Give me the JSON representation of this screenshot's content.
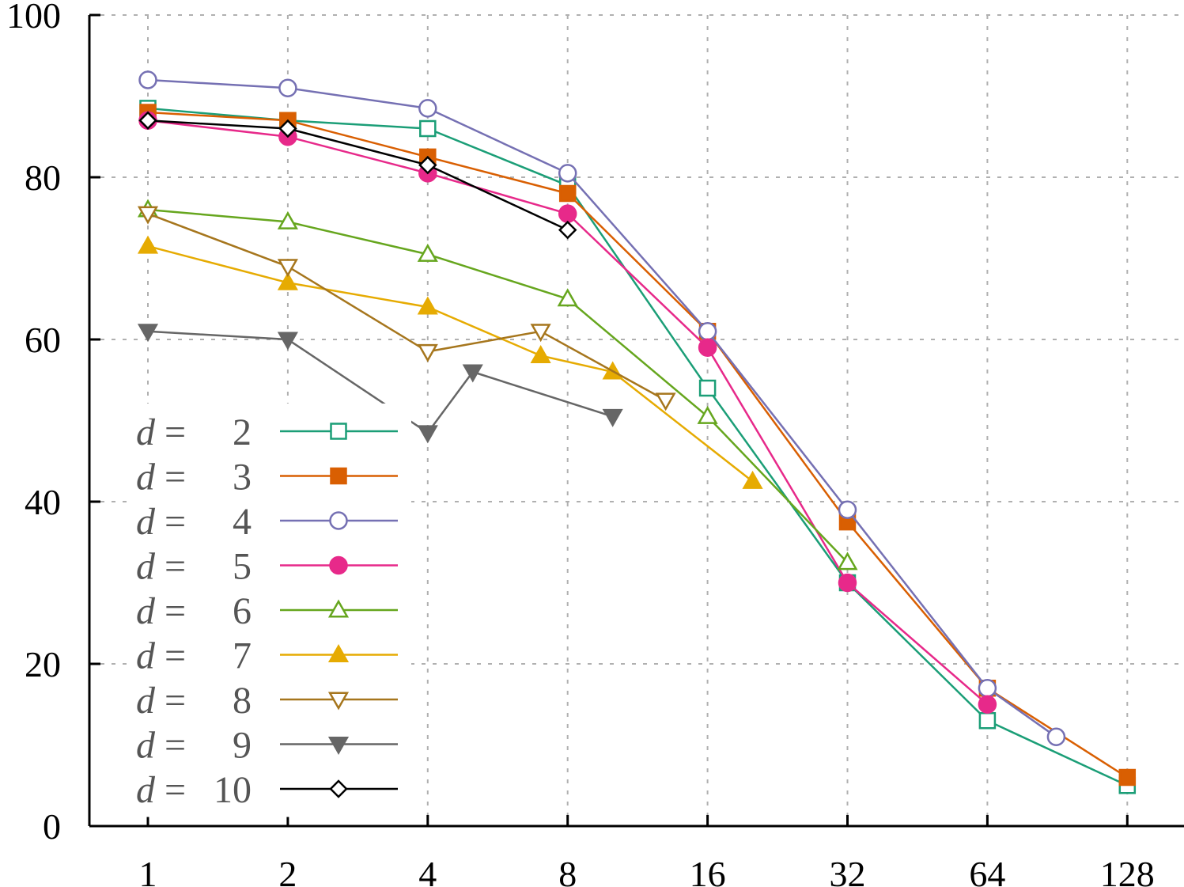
{
  "chart_data": {
    "type": "line",
    "title": "",
    "xlabel": "",
    "ylabel": "",
    "x_scale": "log2",
    "x_ticks": [
      1,
      2,
      4,
      8,
      16,
      32,
      64,
      128
    ],
    "x_tick_labels": [
      "1",
      "2",
      "4",
      "8",
      "16",
      "32",
      "64",
      "128"
    ],
    "y_ticks": [
      0,
      20,
      40,
      60,
      80,
      100
    ],
    "y_tick_labels": [
      "0",
      "20",
      "40",
      "60",
      "80",
      "100"
    ],
    "ylim": [
      0,
      100
    ],
    "grid": true,
    "legend_position": "bottom-left",
    "series": [
      {
        "name": "2",
        "legend_prefix": "d =",
        "color": "#1b9e77",
        "marker": "square-open",
        "x": [
          1,
          2,
          4,
          8,
          16,
          32,
          64,
          128
        ],
        "y": [
          88.5,
          87,
          86,
          79,
          54,
          30,
          13,
          5
        ]
      },
      {
        "name": "3",
        "legend_prefix": "d =",
        "color": "#d95f02",
        "marker": "square-filled",
        "x": [
          1,
          2,
          4,
          8,
          16,
          32,
          64,
          128
        ],
        "y": [
          88,
          87,
          82.5,
          78,
          61,
          37.5,
          17,
          6
        ]
      },
      {
        "name": "4",
        "legend_prefix": "d =",
        "color": "#7570b3",
        "marker": "circle-open",
        "x": [
          1,
          2,
          4,
          8,
          16,
          32,
          64,
          90
        ],
        "y": [
          92,
          91,
          88.5,
          80.5,
          61,
          39,
          17,
          11
        ]
      },
      {
        "name": "5",
        "legend_prefix": "d =",
        "color": "#e7298a",
        "marker": "circle-filled",
        "x": [
          1,
          2,
          4,
          8,
          16,
          32,
          64
        ],
        "y": [
          87,
          85,
          80.5,
          75.5,
          59,
          30,
          15
        ]
      },
      {
        "name": "6",
        "legend_prefix": "d =",
        "color": "#66a61e",
        "marker": "triangle-up-open",
        "x": [
          1,
          2,
          4,
          8,
          16,
          32
        ],
        "y": [
          76,
          74.5,
          70.5,
          65,
          50.5,
          32.5
        ]
      },
      {
        "name": "7",
        "legend_prefix": "d =",
        "color": "#e6ab02",
        "marker": "triangle-up-filled",
        "x": [
          1,
          2,
          4,
          7,
          10,
          20
        ],
        "y": [
          71.5,
          67,
          64,
          58,
          56,
          42.5
        ]
      },
      {
        "name": "8",
        "legend_prefix": "d =",
        "color": "#a6761d",
        "marker": "triangle-down-open",
        "x": [
          1,
          2,
          4,
          7,
          13
        ],
        "y": [
          75.5,
          69,
          58.5,
          61,
          52.5
        ]
      },
      {
        "name": "9",
        "legend_prefix": "d =",
        "color": "#666666",
        "marker": "triangle-down-filled",
        "x": [
          1,
          2,
          4,
          5,
          10
        ],
        "y": [
          61,
          60,
          48.5,
          56,
          50.5
        ]
      },
      {
        "name": "10",
        "legend_prefix": "d =",
        "color": "#000000",
        "marker": "diamond-open",
        "x": [
          1,
          2,
          4,
          8
        ],
        "y": [
          87,
          86,
          81.5,
          73.5
        ]
      }
    ]
  }
}
